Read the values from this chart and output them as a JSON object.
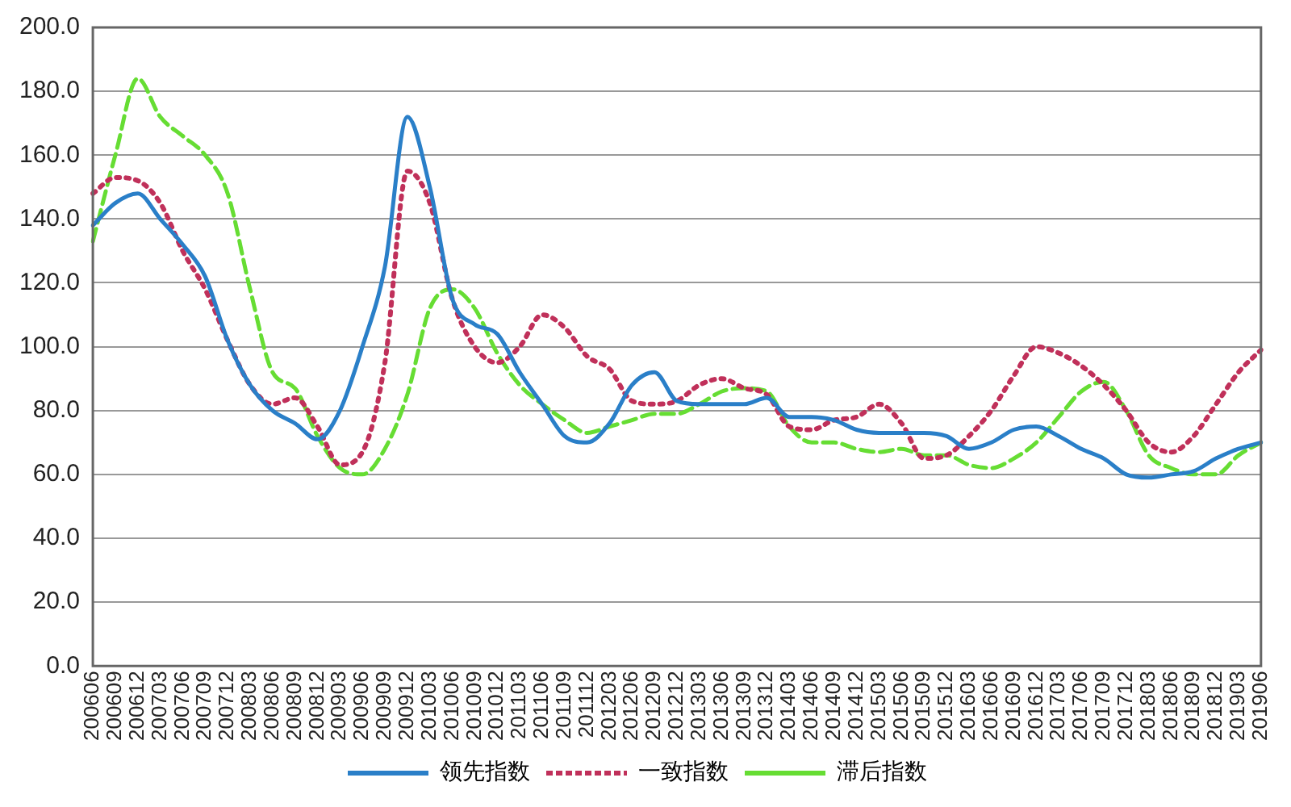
{
  "chart_data": {
    "type": "line",
    "categories": [
      "200606",
      "200609",
      "200612",
      "200703",
      "200706",
      "200709",
      "200712",
      "200803",
      "200806",
      "200809",
      "200812",
      "200903",
      "200906",
      "200909",
      "200912",
      "201003",
      "201006",
      "201009",
      "201012",
      "201103",
      "201106",
      "201109",
      "201112",
      "201203",
      "201206",
      "201209",
      "201212",
      "201303",
      "201306",
      "201309",
      "201312",
      "201403",
      "201406",
      "201409",
      "201412",
      "201503",
      "201506",
      "201509",
      "201512",
      "201603",
      "201606",
      "201609",
      "201612",
      "201703",
      "201706",
      "201709",
      "201712",
      "201803",
      "201806",
      "201809",
      "201812",
      "201903",
      "201906"
    ],
    "series": [
      {
        "name": "领先指数",
        "color": "#2a7fc8",
        "line_style": "solid",
        "values": [
          138,
          145,
          148,
          140,
          132,
          122,
          102,
          88,
          80,
          76,
          71,
          80,
          100,
          125,
          172,
          150,
          115,
          107,
          104,
          92,
          82,
          72,
          70,
          76,
          88,
          92,
          83,
          82,
          82,
          82,
          84,
          78,
          78,
          77,
          74,
          73,
          73,
          73,
          72,
          68,
          70,
          74,
          75,
          72,
          68,
          65,
          60,
          59,
          60,
          61,
          65,
          68,
          70
        ]
      },
      {
        "name": "一致指数",
        "color": "#c0305a",
        "line_style": "dotted",
        "values": [
          148,
          153,
          152,
          145,
          130,
          118,
          102,
          88,
          82,
          84,
          75,
          63,
          67,
          95,
          155,
          145,
          115,
          100,
          95,
          100,
          110,
          106,
          97,
          93,
          83,
          82,
          83,
          88,
          90,
          87,
          85,
          75,
          74,
          77,
          78,
          82,
          76,
          65,
          66,
          72,
          80,
          91,
          100,
          98,
          94,
          88,
          80,
          70,
          67,
          72,
          82,
          92,
          99
        ]
      },
      {
        "name": "滞后指数",
        "color": "#66dd33",
        "line_style": "dashed",
        "values": [
          133,
          160,
          184,
          172,
          166,
          160,
          148,
          118,
          92,
          87,
          72,
          62,
          60,
          68,
          85,
          112,
          118,
          112,
          98,
          88,
          82,
          77,
          73,
          75,
          77,
          79,
          79,
          82,
          86,
          87,
          86,
          75,
          70,
          70,
          68,
          67,
          68,
          66,
          66,
          63,
          62,
          65,
          70,
          78,
          86,
          89,
          80,
          66,
          62,
          60,
          60,
          66,
          70
        ]
      }
    ],
    "ylim": [
      0,
      200
    ],
    "yticks": [
      {
        "value": 0,
        "label": "0.0"
      },
      {
        "value": 20,
        "label": "20.0"
      },
      {
        "value": 40,
        "label": "40.0"
      },
      {
        "value": 60,
        "label": "60.0"
      },
      {
        "value": 80,
        "label": "80.0"
      },
      {
        "value": 100,
        "label": "100.0"
      },
      {
        "value": 120,
        "label": "120.0"
      },
      {
        "value": 140,
        "label": "140.0"
      },
      {
        "value": 160,
        "label": "160.0"
      },
      {
        "value": 180,
        "label": "180.0"
      },
      {
        "value": 200,
        "label": "200.0"
      }
    ],
    "grid": "y",
    "legend": "bottom",
    "marker": "none"
  }
}
